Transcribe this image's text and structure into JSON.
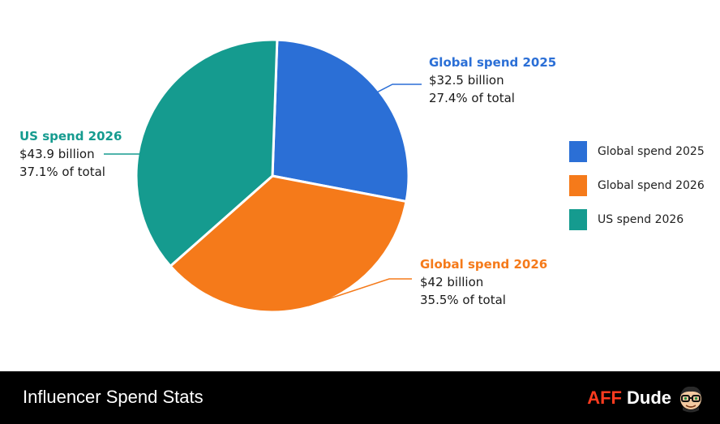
{
  "chart_data": {
    "type": "pie",
    "categories": [
      "Global spend 2025",
      "Global spend 2026",
      "US spend 2026"
    ],
    "values": [
      32.5,
      42,
      43.9
    ],
    "value_labels": [
      "$32.5 billion",
      "$42 billion",
      "$43.9 billion"
    ],
    "percent_labels": [
      "27.4% of total",
      "35.5% of total",
      "37.1% of total"
    ],
    "colors": [
      "#2b6fd6",
      "#f57a1a",
      "#159b8f"
    ],
    "legend_placement": "right"
  },
  "legend": {
    "items": [
      {
        "label": "Global spend 2025",
        "color": "#2b6fd6"
      },
      {
        "label": "Global spend 2026",
        "color": "#f57a1a"
      },
      {
        "label": "US spend 2026",
        "color": "#159b8f"
      }
    ]
  },
  "footer": {
    "title": "Influencer Spend Stats",
    "brand_aff": "AFF",
    "brand_dude": "Dude",
    "avatar_icon": "cartoon-avatar-with-glasses-icon"
  }
}
